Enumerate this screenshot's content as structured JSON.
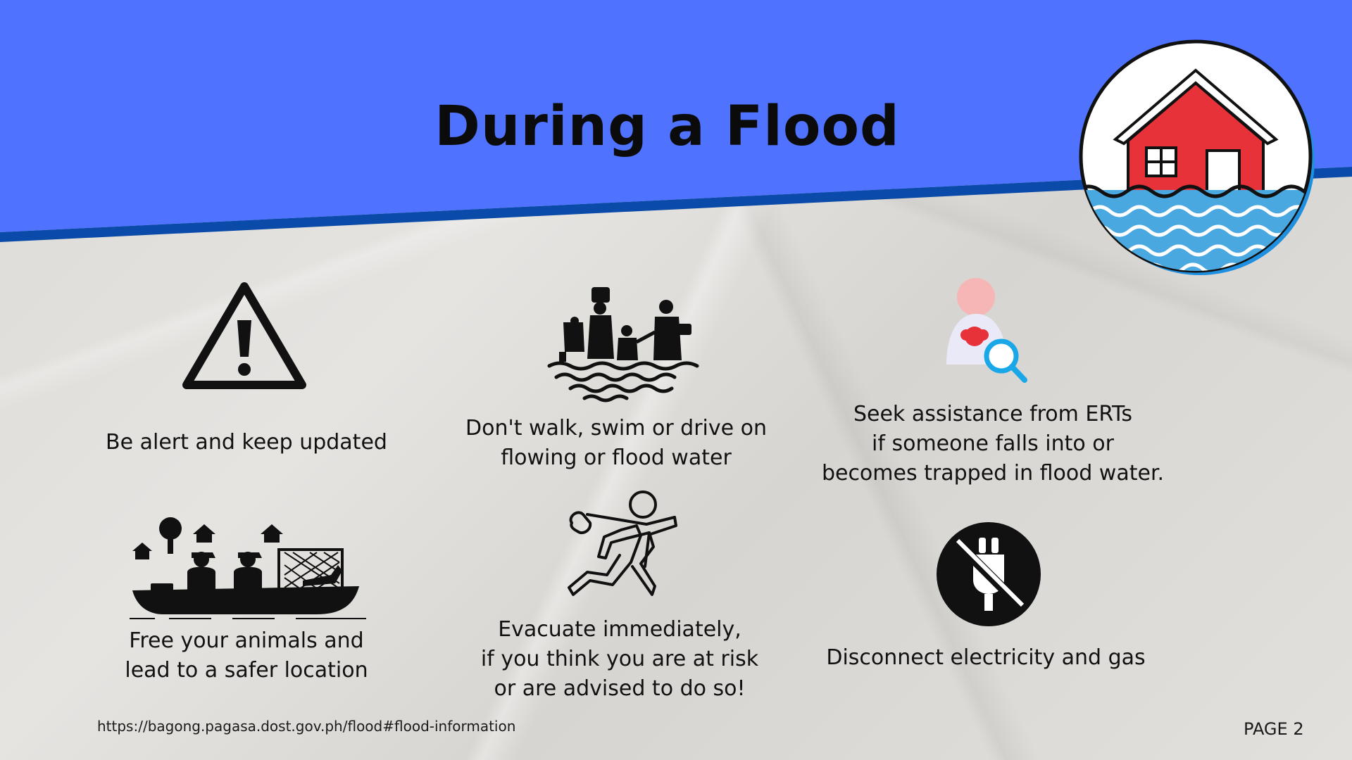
{
  "title": "During a Flood",
  "colors": {
    "header_blue": "#4f72ff",
    "header_stripe": "#0a4aa8",
    "roof_red": "#e8323a",
    "water_blue": "#4aa8e0"
  },
  "items": [
    {
      "icon": "warning-triangle-icon",
      "lines": [
        "Be alert and keep updated"
      ]
    },
    {
      "icon": "people-wading-icon",
      "lines": [
        "Don't walk, swim or drive on",
        "flowing or flood water"
      ]
    },
    {
      "icon": "person-search-icon",
      "lines": [
        "Seek assistance from ERTs",
        "if someone falls into or",
        "becomes trapped in flood water."
      ]
    },
    {
      "icon": "rescue-boat-icon",
      "lines": [
        "Free your animals and",
        "lead to a safer location"
      ]
    },
    {
      "icon": "running-person-icon",
      "lines": [
        "Evacuate immediately,",
        "if you think you are at risk",
        "or are advised to do so!"
      ]
    },
    {
      "icon": "no-plug-icon",
      "lines": [
        "Disconnect electricity and gas"
      ]
    }
  ],
  "footer": {
    "url": "https://bagong.pagasa.dost.gov.ph/flood#flood-information",
    "page": "PAGE 2"
  }
}
